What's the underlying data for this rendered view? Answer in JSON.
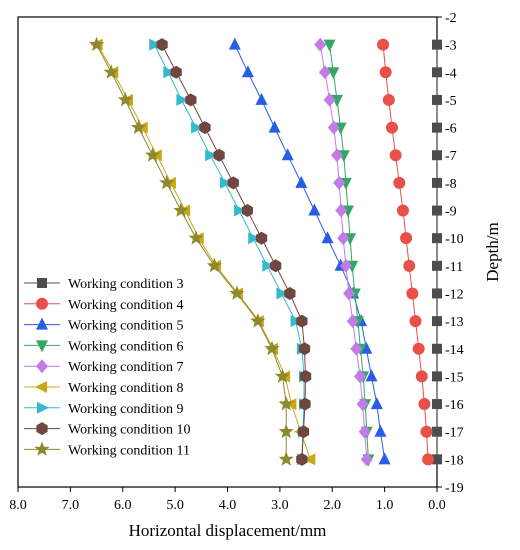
{
  "chart_data": {
    "type": "line",
    "xlabel": "Horizontal displacement/mm",
    "ylabel": "Depth/m",
    "xlim": [
      8.0,
      0.0
    ],
    "x_reversed": true,
    "ylim": [
      -2,
      -19
    ],
    "x_ticks": [
      "8.0",
      "7.0",
      "6.0",
      "5.0",
      "4.0",
      "3.0",
      "2.0",
      "1.0",
      "0.0"
    ],
    "y_ticks": [
      "-2",
      "-3",
      "-4",
      "-5",
      "-6",
      "-7",
      "-8",
      "-9",
      "-10",
      "-11",
      "-12",
      "-13",
      "-14",
      "-15",
      "-16",
      "-17",
      "-18",
      "-19"
    ],
    "legend_position": "bottom-left",
    "depths": [
      -3,
      -4,
      -5,
      -6,
      -7,
      -8,
      -9,
      -10,
      -11,
      -12,
      -13,
      -14,
      -15,
      -16,
      -17,
      -18
    ],
    "series": [
      {
        "name": "Working condition 3",
        "marker": "square",
        "color": "#4d4d4d",
        "values": [
          0,
          0,
          0,
          0,
          0,
          0,
          0,
          0,
          0,
          0,
          0,
          0,
          0,
          0,
          0,
          0
        ]
      },
      {
        "name": "Working condition 4",
        "marker": "circle",
        "color": "#e8504a",
        "values": [
          1.03,
          0.98,
          0.92,
          0.86,
          0.79,
          0.72,
          0.65,
          0.59,
          0.53,
          0.47,
          0.41,
          0.35,
          0.29,
          0.24,
          0.2,
          0.17
        ]
      },
      {
        "name": "Working condition 5",
        "marker": "triangle-up",
        "color": "#2a5ce6",
        "values": [
          3.86,
          3.61,
          3.35,
          3.1,
          2.85,
          2.59,
          2.34,
          2.09,
          1.84,
          1.6,
          1.45,
          1.35,
          1.25,
          1.15,
          1.08,
          1.0
        ]
      },
      {
        "name": "Working condition 6",
        "marker": "triangle-down",
        "color": "#33a866",
        "values": [
          2.05,
          1.98,
          1.91,
          1.84,
          1.78,
          1.74,
          1.7,
          1.66,
          1.62,
          1.57,
          1.51,
          1.46,
          1.41,
          1.37,
          1.34,
          1.31
        ]
      },
      {
        "name": "Working condition 7",
        "marker": "diamond",
        "color": "#c37ce6",
        "values": [
          2.23,
          2.14,
          2.05,
          1.97,
          1.91,
          1.87,
          1.83,
          1.79,
          1.74,
          1.68,
          1.61,
          1.54,
          1.47,
          1.42,
          1.38,
          1.34
        ]
      },
      {
        "name": "Working condition 8",
        "marker": "triangle-left",
        "color": "#cfa518",
        "values": [
          6.48,
          6.18,
          5.9,
          5.62,
          5.35,
          5.08,
          4.81,
          4.55,
          4.22,
          3.8,
          3.4,
          3.13,
          2.9,
          2.78,
          2.6,
          2.42
        ]
      },
      {
        "name": "Working condition 9",
        "marker": "triangle-right",
        "color": "#36b9cc",
        "values": [
          5.4,
          5.13,
          4.88,
          4.6,
          4.33,
          4.05,
          3.78,
          3.51,
          3.24,
          2.97,
          2.7,
          2.58,
          2.54,
          2.54,
          2.56,
          2.58
        ]
      },
      {
        "name": "Working condition 10",
        "marker": "hexagon",
        "color": "#6e4741",
        "values": [
          5.25,
          4.98,
          4.7,
          4.43,
          4.16,
          3.89,
          3.62,
          3.35,
          3.08,
          2.81,
          2.58,
          2.53,
          2.51,
          2.52,
          2.55,
          2.58
        ]
      },
      {
        "name": "Working condition 11",
        "marker": "star",
        "color": "#8c8a2c",
        "values": [
          6.5,
          6.22,
          5.95,
          5.7,
          5.43,
          5.16,
          4.89,
          4.6,
          4.25,
          3.82,
          3.42,
          3.15,
          2.95,
          2.88,
          2.88,
          2.88
        ]
      }
    ]
  }
}
